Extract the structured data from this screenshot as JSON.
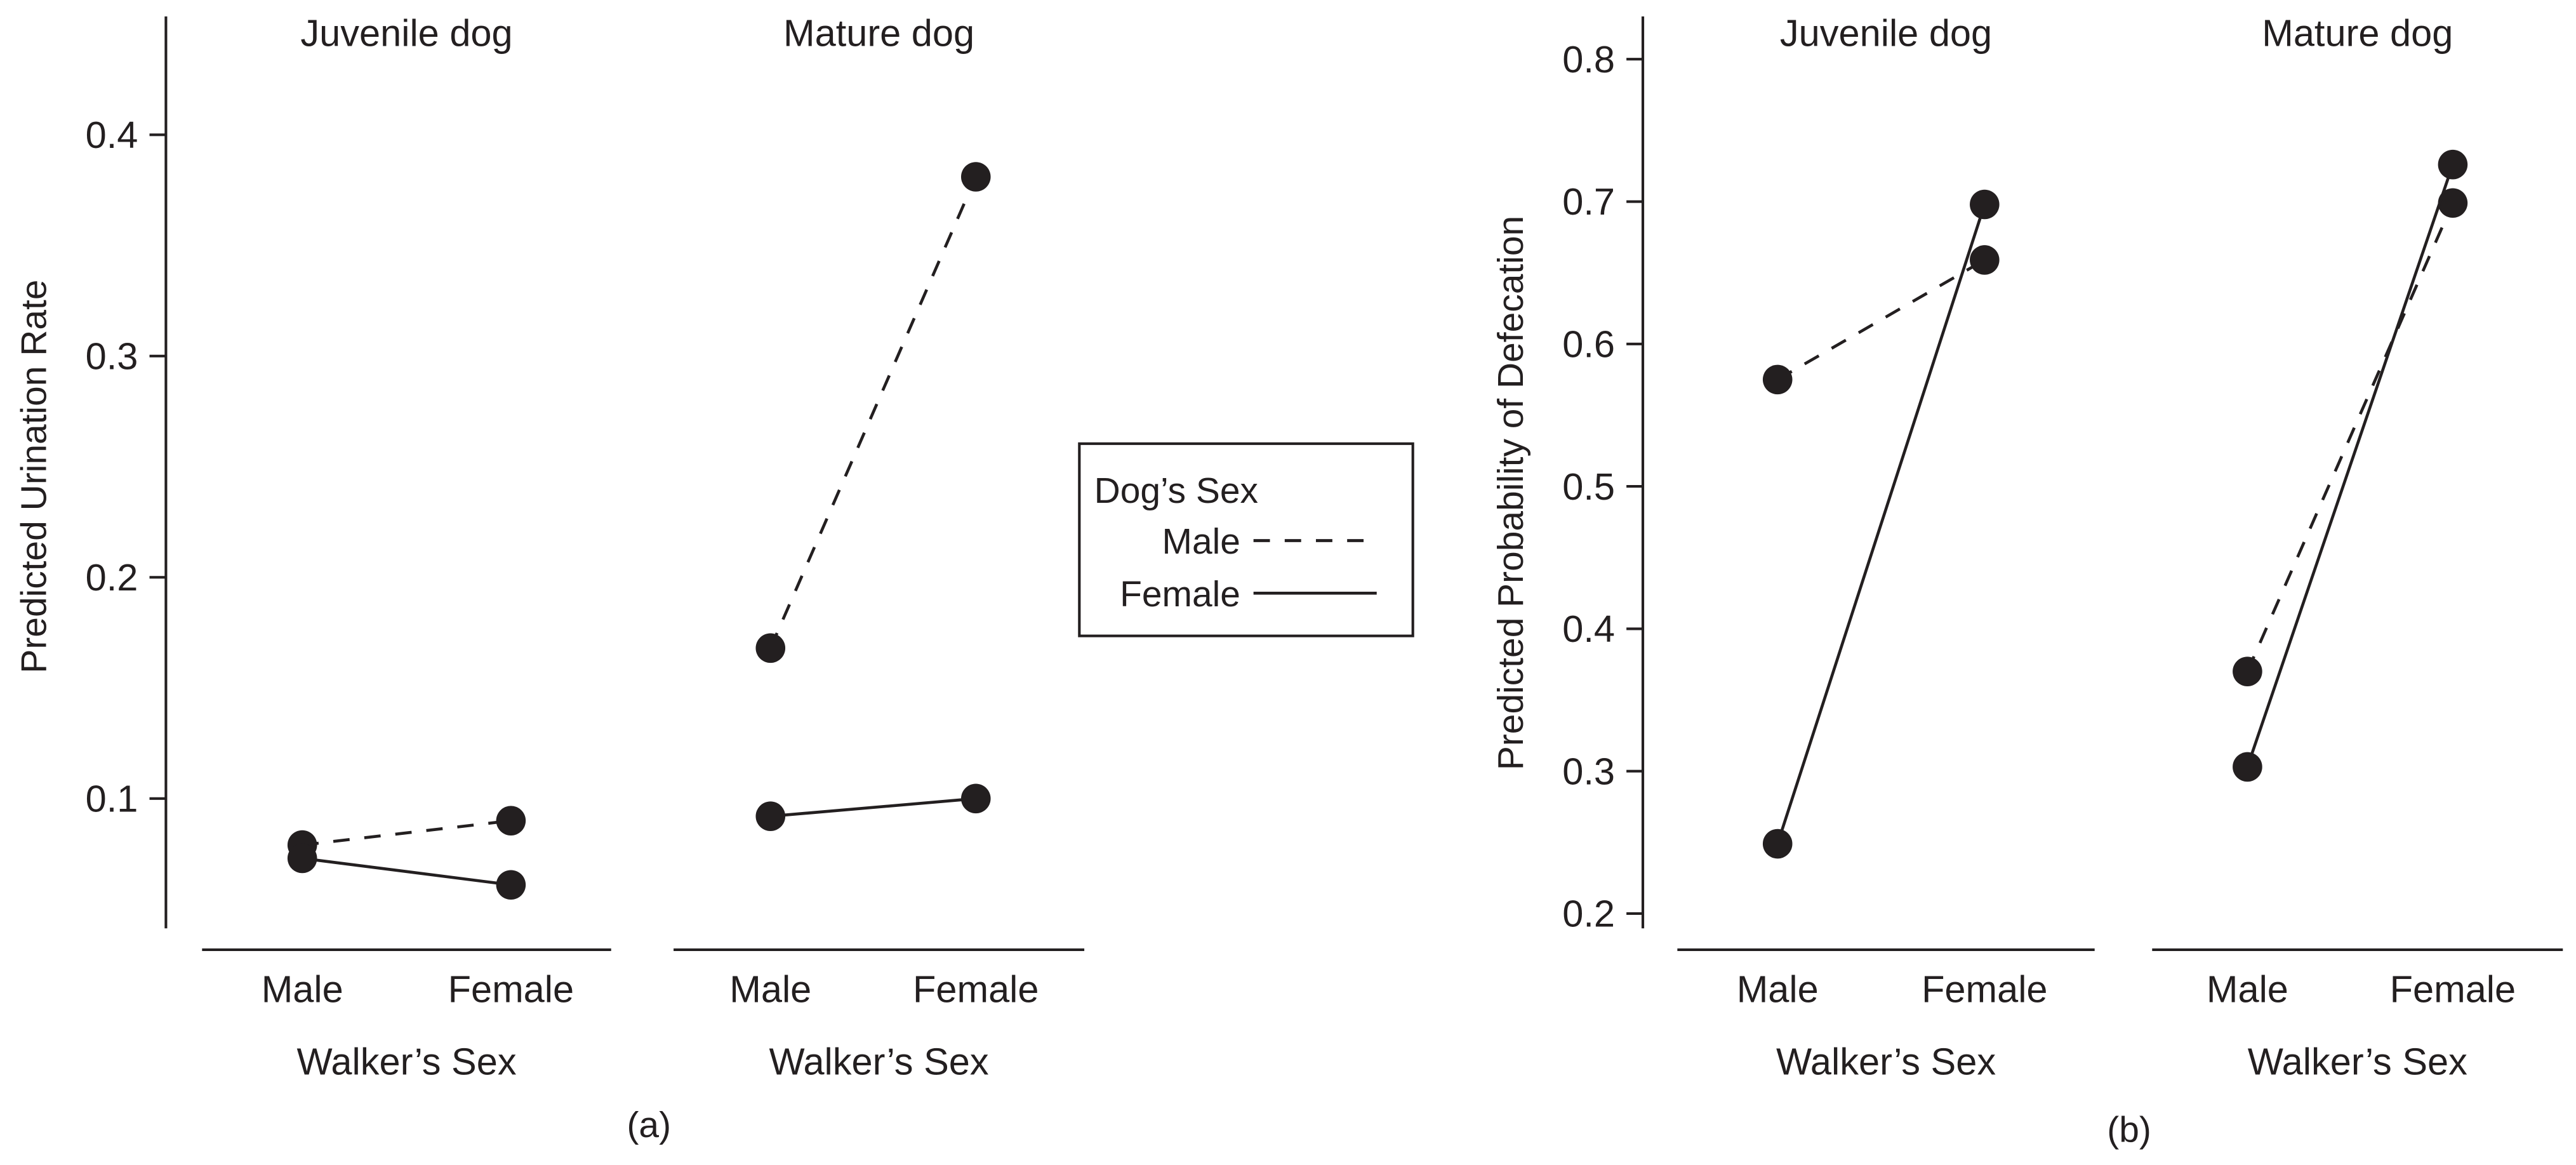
{
  "chart_data": [
    {
      "type": "line",
      "panel_label": "(a)",
      "ylabel": "Predicted Urination Rate",
      "ylim": [
        0.045,
        0.45
      ],
      "yticks": [
        0.1,
        0.2,
        0.3,
        0.4
      ],
      "ytick_labels": [
        "0.1",
        "0.2",
        "0.3",
        "0.4"
      ],
      "subplots": [
        {
          "title": "Juvenile dog",
          "xlabel": "Walker’s Sex",
          "categories": [
            "Male",
            "Female"
          ],
          "series": [
            {
              "name": "Male",
              "style": "dashed",
              "values": [
                0.079,
                0.09
              ]
            },
            {
              "name": "Female",
              "style": "solid",
              "values": [
                0.073,
                0.061
              ]
            }
          ]
        },
        {
          "title": "Mature dog",
          "xlabel": "Walker’s Sex",
          "categories": [
            "Male",
            "Female"
          ],
          "series": [
            {
              "name": "Male",
              "style": "dashed",
              "values": [
                0.168,
                0.381
              ]
            },
            {
              "name": "Female",
              "style": "solid",
              "values": [
                0.092,
                0.1
              ]
            }
          ]
        }
      ]
    },
    {
      "type": "line",
      "panel_label": "(b)",
      "ylabel": "Predicted Probability of Defecation",
      "ylim": [
        0.185,
        0.83
      ],
      "yticks": [
        0.2,
        0.3,
        0.4,
        0.5,
        0.6,
        0.7,
        0.8
      ],
      "ytick_labels": [
        "0.2",
        "0.3",
        "0.4",
        "0.5",
        "0.6",
        "0.7",
        "0.8"
      ],
      "subplots": [
        {
          "title": "Juvenile dog",
          "xlabel": "Walker’s Sex",
          "categories": [
            "Male",
            "Female"
          ],
          "series": [
            {
              "name": "Male",
              "style": "dashed",
              "values": [
                0.575,
                0.659
              ]
            },
            {
              "name": "Female",
              "style": "solid",
              "values": [
                0.249,
                0.698
              ]
            }
          ]
        },
        {
          "title": "Mature dog",
          "xlabel": "Walker’s Sex",
          "categories": [
            "Male",
            "Female"
          ],
          "series": [
            {
              "name": "Male",
              "style": "dashed",
              "values": [
                0.37,
                0.699
              ]
            },
            {
              "name": "Female",
              "style": "solid",
              "values": [
                0.303,
                0.726
              ]
            }
          ]
        }
      ]
    }
  ],
  "legend": {
    "title": "Dog’s Sex",
    "entries": [
      {
        "label": "Male",
        "style": "dashed"
      },
      {
        "label": "Female",
        "style": "solid"
      }
    ]
  },
  "colors": {
    "ink": "#231f20",
    "background": "#ffffff"
  }
}
